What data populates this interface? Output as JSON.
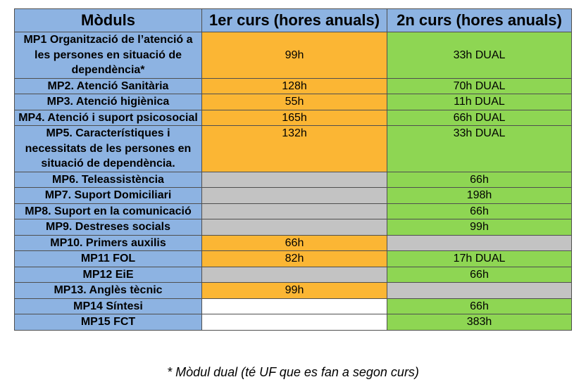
{
  "headers": [
    "Mòduls",
    "1er curs (hores anuals)",
    "2n curs (hores anuals)"
  ],
  "rows": [
    {
      "module": "MP1 Organització de l’atenció a les persones en situació de dependència*",
      "y1": "99h",
      "y2": "33h DUAL",
      "c1": "orange",
      "c2": "green",
      "align": "middle"
    },
    {
      "module": "MP2. Atenció Sanitària",
      "y1": "128h",
      "y2": "70h DUAL",
      "c1": "orange",
      "c2": "green",
      "align": "middle"
    },
    {
      "module": "MP3. Atenció higiènica",
      "y1": "55h",
      "y2": "11h DUAL",
      "c1": "orange",
      "c2": "green",
      "align": "middle"
    },
    {
      "module": "MP4. Atenció i suport psicosocial",
      "y1": "165h",
      "y2": "66h DUAL",
      "c1": "orange",
      "c2": "green",
      "align": "top"
    },
    {
      "module": "MP5. Característiques i necessitats de les persones en situació de dependència.",
      "y1": "132h",
      "y2": "33h DUAL",
      "c1": "orange",
      "c2": "green",
      "align": "top"
    },
    {
      "module": "MP6. Teleassistència",
      "y1": "",
      "y2": "66h",
      "c1": "gray",
      "c2": "green",
      "align": "middle"
    },
    {
      "module": "MP7. Suport Domiciliari",
      "y1": "",
      "y2": "198h",
      "c1": "gray",
      "c2": "green",
      "align": "middle"
    },
    {
      "module": "MP8. Suport en la comunicació",
      "y1": "",
      "y2": "66h",
      "c1": "gray",
      "c2": "green",
      "align": "top"
    },
    {
      "module": "MP9. Destreses socials",
      "y1": "",
      "y2": "99h",
      "c1": "gray",
      "c2": "green",
      "align": "middle"
    },
    {
      "module": "MP10. Primers auxilis",
      "y1": "66h",
      "y2": "",
      "c1": "orange",
      "c2": "gray",
      "align": "middle"
    },
    {
      "module": "MP11 FOL",
      "y1": "82h",
      "y2": "17h DUAL",
      "c1": "orange",
      "c2": "green",
      "align": "middle"
    },
    {
      "module": "MP12 EiE",
      "y1": "",
      "y2": "66h",
      "c1": "gray",
      "c2": "green",
      "align": "middle"
    },
    {
      "module": "MP13. Anglès tècnic",
      "y1": "99h",
      "y2": "",
      "c1": "orange",
      "c2": "gray",
      "align": "middle"
    },
    {
      "module": "MP14 Síntesi",
      "y1": "",
      "y2": "66h",
      "c1": "white",
      "c2": "green",
      "align": "middle"
    },
    {
      "module": "MP15 FCT",
      "y1": "",
      "y2": "383h",
      "c1": "white",
      "c2": "green",
      "align": "middle"
    }
  ],
  "colors": {
    "header": "#8db3e2",
    "module": "#8db3e2",
    "orange": "#fbb634",
    "green": "#8ed653",
    "gray": "#c3c3c3",
    "white": "#ffffff"
  },
  "footnote": "* Mòdul dual (té UF que es fan a segon curs)"
}
